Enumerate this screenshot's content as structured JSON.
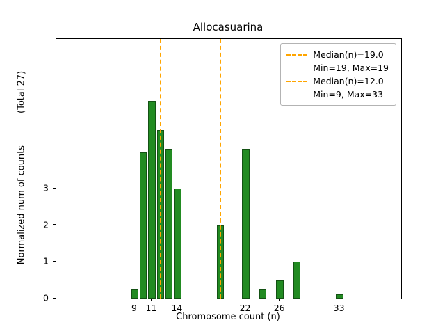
{
  "chart_data": {
    "type": "bar",
    "title": "Allocasuarina",
    "xlabel": "Chromosome count (n)",
    "ylabel": "Normalized num of counts",
    "ylabel_total": "(Total 27)",
    "x_ticks": [
      9,
      11,
      14,
      22,
      26,
      33
    ],
    "y_ticks": [
      0,
      1,
      2,
      3
    ],
    "xlim": [
      -0.2,
      40.2
    ],
    "ylim": [
      0,
      7.1
    ],
    "bar_width": 0.85,
    "grid": false,
    "legend_position": "upper right",
    "bars": [
      {
        "x": 9,
        "h": 0.25
      },
      {
        "x": 10,
        "h": 4.0
      },
      {
        "x": 11,
        "h": 5.4
      },
      {
        "x": 12,
        "h": 4.6
      },
      {
        "x": 13,
        "h": 4.1
      },
      {
        "x": 14,
        "h": 3.0
      },
      {
        "x": 19,
        "h": 2.0
      },
      {
        "x": 22,
        "h": 4.1
      },
      {
        "x": 24,
        "h": 0.25
      },
      {
        "x": 26,
        "h": 0.5
      },
      {
        "x": 28,
        "h": 1.0
      },
      {
        "x": 33,
        "h": 0.12
      }
    ],
    "median_lines": [
      {
        "x": 19
      },
      {
        "x": 12
      }
    ],
    "legend": [
      {
        "line1": "Median(n)=19.0",
        "line2": "Min=19, Max=19"
      },
      {
        "line1": "Median(n)=12.0",
        "line2": "Min=9, Max=33"
      }
    ],
    "colors": {
      "bar_fill": "#228b22",
      "bar_edge": "#145214",
      "median_line": "#ffa500",
      "legend_border": "#b3b3b3",
      "axis": "#000000"
    }
  }
}
